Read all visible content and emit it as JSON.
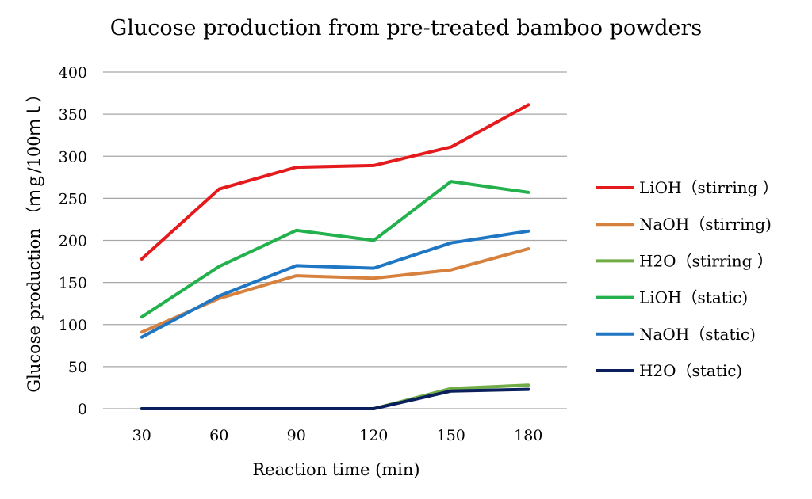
{
  "chart_data": {
    "type": "line",
    "title": "Glucose production from pre-treated bamboo powders",
    "xlabel": "Reaction time (min)",
    "ylabel": "Glucose production （ｍｇ/100ｍｌ）",
    "x": [
      30,
      60,
      90,
      120,
      150,
      180
    ],
    "ylim": [
      0,
      400
    ],
    "yticks": [
      0,
      50,
      100,
      150,
      200,
      250,
      300,
      350,
      400
    ],
    "grid": true,
    "legend_position": "right",
    "series": [
      {
        "name": "LiOH（stirring ）",
        "color": "#e41a1c",
        "values": [
          178,
          261,
          287,
          289,
          311,
          361
        ]
      },
      {
        "name": "NaOH（stirring)",
        "color": "#d7813f",
        "values": [
          91,
          131,
          158,
          155,
          165,
          190
        ]
      },
      {
        "name": "H2O（stirring ）",
        "color": "#70ad47",
        "values": [
          0,
          0,
          0,
          0,
          24,
          28
        ]
      },
      {
        "name": "LiOH（static)",
        "color": "#22b14c",
        "values": [
          109,
          169,
          212,
          200,
          270,
          257
        ]
      },
      {
        "name": "NaOH（static)",
        "color": "#1f77c4",
        "values": [
          85,
          134,
          170,
          167,
          197,
          211
        ]
      },
      {
        "name": "H2O（static)",
        "color": "#0b1f5c",
        "values": [
          0,
          0,
          0,
          0,
          21,
          23
        ]
      }
    ]
  }
}
